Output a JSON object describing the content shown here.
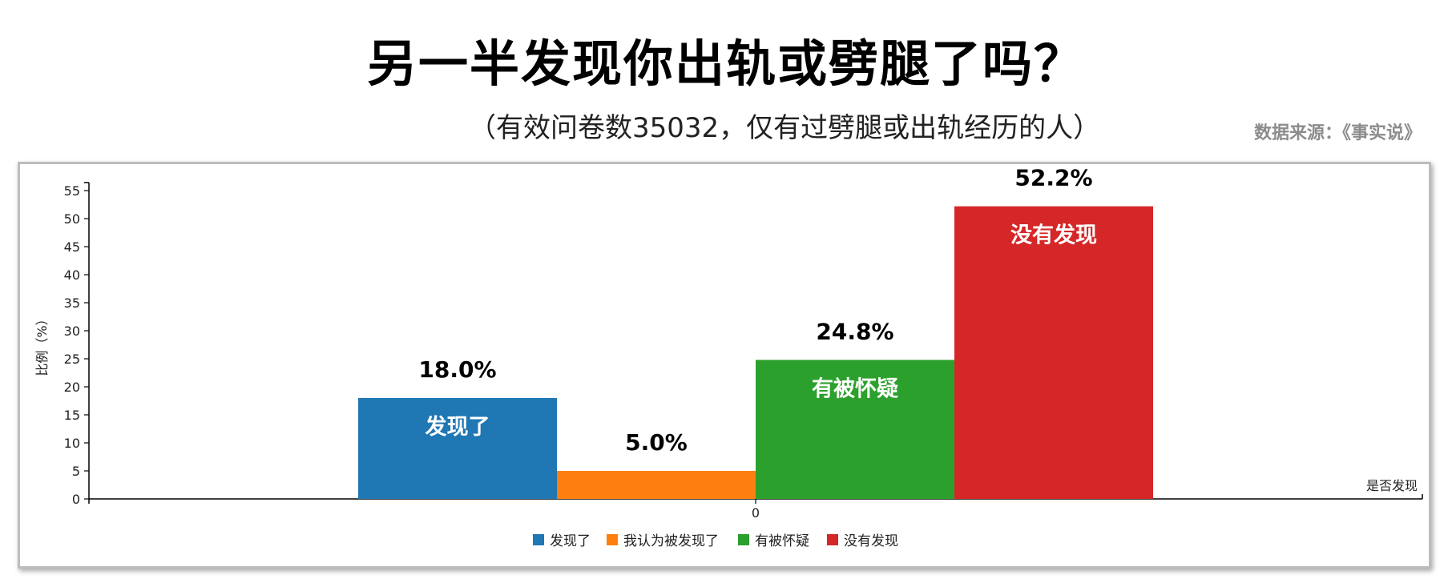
{
  "title": "另一半发现你出轨或劈腿了吗？",
  "subtitle": "（有效问卷数35032，仅有过劈腿或出轨经历的人）",
  "source": "数据来源：《事实说》",
  "chart_data": {
    "type": "bar",
    "xlabel": "是否发现",
    "ylabel": "比例（%）",
    "x_tick": "0",
    "ylim": [
      0,
      55
    ],
    "yticks": [
      0,
      5,
      10,
      15,
      20,
      25,
      30,
      35,
      40,
      45,
      50,
      55
    ],
    "grid": false,
    "legend_position": "bottom",
    "series": [
      {
        "name": "发现了",
        "value": 18.0,
        "value_label": "18.0%",
        "inner_label": "发现了",
        "color": "#1f77b4"
      },
      {
        "name": "我认为被发现了",
        "value": 5.0,
        "value_label": "5.0%",
        "inner_label": "",
        "color": "#ff7f0e"
      },
      {
        "name": "有被怀疑",
        "value": 24.8,
        "value_label": "24.8%",
        "inner_label": "有被怀疑",
        "color": "#2ca02c"
      },
      {
        "name": "没有发现",
        "value": 52.2,
        "value_label": "52.2%",
        "inner_label": "没有发现",
        "color": "#d62728"
      }
    ]
  }
}
